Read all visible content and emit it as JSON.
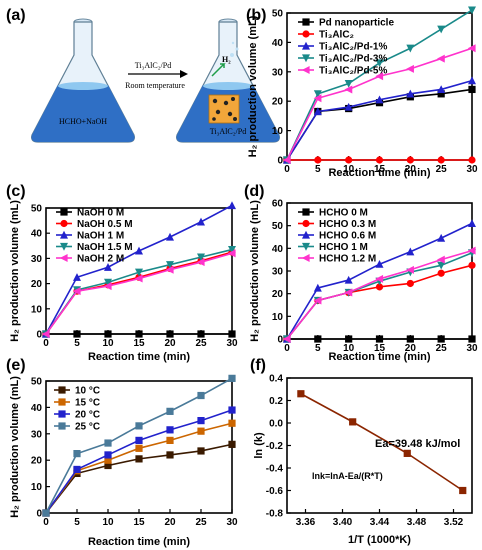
{
  "figure": {
    "labels": {
      "a": "(a)",
      "b": "(b)",
      "c": "(c)",
      "d": "(d)",
      "e": "(e)",
      "f": "(f)"
    }
  },
  "scheme": {
    "left_flask": "HCHO+NaOH",
    "arrow_top": "Ti₃AlC₂/Pd",
    "arrow_bottom": "Room temperature",
    "bubble": "H₂",
    "right_flask": "Ti₃AlC₂/Pd"
  },
  "chart_data": [
    {
      "id": "b",
      "type": "line",
      "xlabel": "Reaction time (min)",
      "ylabel": "H₂ production volume (mL)",
      "xlim": [
        0,
        30
      ],
      "ylim": [
        0,
        50
      ],
      "xticks": [
        0,
        5,
        10,
        15,
        20,
        25,
        30
      ],
      "yticks": [
        0,
        10,
        20,
        30,
        40,
        50
      ],
      "legend": "top-left",
      "x": [
        0,
        5,
        10,
        15,
        20,
        25,
        30
      ],
      "series": [
        {
          "name": "Pd nanoparticle",
          "color": "#000000",
          "marker": "square",
          "values": [
            0,
            16.5,
            17.5,
            19.5,
            21.5,
            22.5,
            24
          ]
        },
        {
          "name": "Ti₃AlC₂",
          "color": "#ff0000",
          "marker": "circle",
          "values": [
            0,
            0,
            0,
            0,
            0,
            0,
            0
          ]
        },
        {
          "name": "Ti₃AlC₂/Pd-1%",
          "color": "#2222cc",
          "marker": "triangle",
          "values": [
            0,
            16.5,
            18,
            20.5,
            22.5,
            24,
            27
          ]
        },
        {
          "name": "Ti₃AlC₂/Pd-3%",
          "color": "#1a8a8a",
          "marker": "triangle-down",
          "values": [
            0,
            22.5,
            26,
            33,
            38,
            44.5,
            51
          ]
        },
        {
          "name": "Ti₃AlC₂/Pd-5%",
          "color": "#ff33cc",
          "marker": "triangle-left",
          "values": [
            0,
            21,
            24,
            28.5,
            31,
            34.5,
            38
          ]
        }
      ]
    },
    {
      "id": "c",
      "type": "line",
      "xlabel": "Reaction time (min)",
      "ylabel": "H₂ production volume (mL)",
      "xlim": [
        0,
        30
      ],
      "ylim": [
        0,
        50
      ],
      "xticks": [
        0,
        5,
        10,
        15,
        20,
        25,
        30
      ],
      "yticks": [
        0,
        10,
        20,
        30,
        40,
        50
      ],
      "legend": "top-left",
      "x": [
        0,
        5,
        10,
        15,
        20,
        25,
        30
      ],
      "series": [
        {
          "name": "NaOH 0 M",
          "color": "#000000",
          "marker": "square",
          "values": [
            0,
            0,
            0,
            0,
            0,
            0,
            0
          ]
        },
        {
          "name": "NaOH 0.5 M",
          "color": "#ff0000",
          "marker": "circle",
          "values": [
            0,
            17,
            19.5,
            22.5,
            26,
            29,
            32.5
          ]
        },
        {
          "name": "NaOH 1 M",
          "color": "#2222cc",
          "marker": "triangle",
          "values": [
            0,
            22.5,
            26.5,
            33,
            38.5,
            44.5,
            51
          ]
        },
        {
          "name": "NaOH 1.5 M",
          "color": "#1a8a8a",
          "marker": "triangle-down",
          "values": [
            0,
            17.5,
            20.5,
            24.5,
            27.5,
            30.5,
            33.5
          ]
        },
        {
          "name": "NaOH 2 M",
          "color": "#ff33cc",
          "marker": "triangle-left",
          "values": [
            0,
            17,
            19,
            22,
            25.5,
            28.5,
            32
          ]
        }
      ]
    },
    {
      "id": "d",
      "type": "line",
      "xlabel": "Reaction time (min)",
      "ylabel": "H₂ production volume (mL)",
      "xlim": [
        0,
        30
      ],
      "ylim": [
        0,
        60
      ],
      "xticks": [
        0,
        5,
        10,
        15,
        20,
        25,
        30
      ],
      "yticks": [
        0,
        10,
        20,
        30,
        40,
        50,
        60
      ],
      "legend": "top-left",
      "x": [
        0,
        5,
        10,
        15,
        20,
        25,
        30
      ],
      "series": [
        {
          "name": "HCHO 0 M",
          "color": "#000000",
          "marker": "square",
          "values": [
            0,
            0,
            0,
            0,
            0,
            0,
            0
          ]
        },
        {
          "name": "HCHO 0.3 M",
          "color": "#ff0000",
          "marker": "circle",
          "values": [
            0,
            17,
            20.5,
            23,
            24.5,
            29,
            32.5
          ]
        },
        {
          "name": "HCHO 0.6 M",
          "color": "#2222cc",
          "marker": "triangle",
          "values": [
            0,
            22.5,
            26,
            33,
            38.5,
            44.5,
            51
          ]
        },
        {
          "name": "HCHO 1 M",
          "color": "#1a8a8a",
          "marker": "triangle-down",
          "values": [
            0,
            17,
            20.5,
            25.5,
            29.5,
            32.5,
            38
          ]
        },
        {
          "name": "HCHO 1.2 M",
          "color": "#ff33cc",
          "marker": "triangle-left",
          "values": [
            0,
            17,
            20.5,
            26.5,
            30.5,
            35,
            39
          ]
        }
      ]
    },
    {
      "id": "e",
      "type": "line",
      "xlabel": "Reaction time (min)",
      "ylabel": "H₂ production volume (mL)",
      "xlim": [
        0,
        30
      ],
      "ylim": [
        0,
        50
      ],
      "xticks": [
        0,
        5,
        10,
        15,
        20,
        25,
        30
      ],
      "yticks": [
        0,
        10,
        20,
        30,
        40,
        50
      ],
      "legend": "top-left",
      "x": [
        0,
        5,
        10,
        15,
        20,
        25,
        30
      ],
      "series": [
        {
          "name": "10 °C",
          "color": "#3a1a00",
          "marker": "square",
          "values": [
            0,
            15,
            18,
            20.5,
            22,
            23.5,
            26
          ]
        },
        {
          "name": "15 °C",
          "color": "#cc6600",
          "marker": "square",
          "values": [
            0,
            16,
            20,
            24.5,
            27.5,
            31,
            34
          ]
        },
        {
          "name": "20 °C",
          "color": "#2222cc",
          "marker": "square",
          "values": [
            0,
            16.5,
            22,
            27.5,
            31.5,
            35,
            39
          ]
        },
        {
          "name": "25 °C",
          "color": "#4a7a99",
          "marker": "square",
          "values": [
            0,
            22.5,
            26.5,
            33,
            38.5,
            44.5,
            51
          ]
        }
      ]
    },
    {
      "id": "f",
      "type": "line",
      "xlabel": "1/T (1000*K)",
      "ylabel": "ln (k)",
      "xlim": [
        3.34,
        3.54
      ],
      "ylim": [
        -0.8,
        0.4
      ],
      "xticks": [
        3.36,
        3.4,
        3.44,
        3.48,
        3.52
      ],
      "xtick_labels": [
        "3.36",
        "3.40",
        "3.44",
        "3.48",
        "3.52"
      ],
      "yticks": [
        -0.8,
        -0.6,
        -0.4,
        -0.2,
        0.0,
        0.2,
        0.4
      ],
      "ytick_labels": [
        "-0.8",
        "-0.6",
        "-0.4",
        "-0.2",
        "0.0",
        "0.2",
        "0.4"
      ],
      "x": [
        3.355,
        3.411,
        3.47,
        3.53
      ],
      "series": [
        {
          "name": "",
          "color": "#8b2500",
          "marker": "square",
          "values": [
            0.26,
            0.01,
            -0.27,
            -0.6
          ]
        }
      ],
      "annotations": [
        "Ea=39.48 kJ/mol",
        "lnk=lnA-Ea/(R*T)"
      ]
    }
  ]
}
